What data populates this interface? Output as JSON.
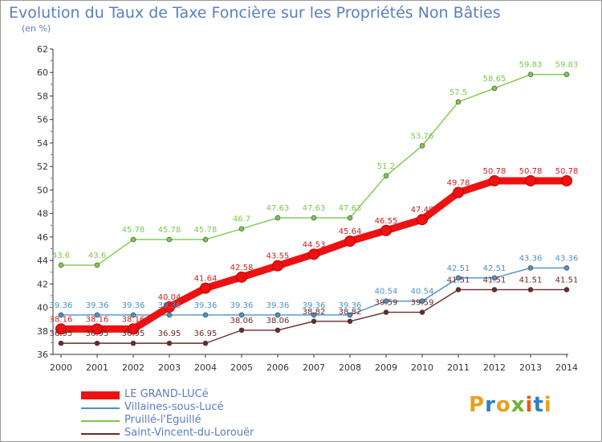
{
  "title": "Evolution du Taux de Taxe Foncière sur les Propriétés Non Bâties",
  "unit": "(en %)",
  "logo": {
    "text": "Proxiti",
    "colors": [
      "#e8a020",
      "#2f7fc8",
      "#6fb43a",
      "#e85a1a"
    ]
  },
  "chart_data": {
    "type": "line",
    "title": "Evolution du Taux de Taxe Foncière sur les Propriétés Non Bâties",
    "ylabel": "(en %)",
    "xlabel": "",
    "x": [
      "2000",
      "2001",
      "2002",
      "2003",
      "2004",
      "2005",
      "2006",
      "2007",
      "2008",
      "2009",
      "2010",
      "2011",
      "2012",
      "2013",
      "2014"
    ],
    "ylim": [
      36,
      62
    ],
    "yticks": [
      36,
      38,
      40,
      42,
      44,
      46,
      48,
      50,
      52,
      54,
      56,
      58,
      60,
      62
    ],
    "grid": false,
    "legend_position": "bottom-left",
    "series": [
      {
        "name": "LE GRAND-LUCé",
        "color": "#ee1111",
        "values": [
          38.16,
          38.16,
          38.16,
          40.04,
          41.64,
          42.58,
          43.55,
          44.53,
          45.64,
          46.55,
          47.48,
          49.78,
          50.78,
          50.78,
          50.78
        ],
        "labels": [
          "38.16",
          "38.16",
          "38.16",
          "40.04",
          "41.64",
          "42.58",
          "43.55",
          "44.53",
          "45.64",
          "46.55",
          "47.48",
          "49.78",
          "50.78",
          "50.78",
          "50.78"
        ]
      },
      {
        "name": "Villaines-sous-Lucé",
        "color": "#4a90c8",
        "values": [
          39.36,
          39.36,
          39.36,
          39.36,
          39.36,
          39.36,
          39.36,
          39.36,
          39.36,
          40.54,
          40.54,
          42.51,
          42.51,
          43.36,
          43.36
        ],
        "labels": [
          "39.36",
          "39.36",
          "39.36",
          "39.36",
          "39.36",
          "39.36",
          "39.36",
          "39.36",
          "39.36",
          "40.54",
          "40.54",
          "42.51",
          "42.51",
          "43.36",
          "43.36"
        ]
      },
      {
        "name": "Pruillé-l'Eguillé",
        "color": "#7cc84a",
        "values": [
          43.6,
          43.6,
          45.78,
          45.78,
          45.78,
          46.7,
          47.63,
          47.63,
          47.63,
          51.2,
          53.76,
          57.5,
          58.65,
          59.83,
          59.83
        ],
        "labels": [
          "43.6",
          "43.6",
          "45.78",
          "45.78",
          "45.78",
          "46.7",
          "47.63",
          "47.63",
          "47.63",
          "51.2",
          "53.76",
          "57.5",
          "58.65",
          "59.83",
          "59.83"
        ]
      },
      {
        "name": "Saint-Vincent-du-Lorouër",
        "color": "#6b2a2a",
        "values": [
          36.95,
          36.95,
          36.95,
          36.95,
          36.95,
          38.06,
          38.06,
          38.82,
          38.82,
          39.59,
          39.59,
          41.51,
          41.51,
          41.51,
          41.51
        ],
        "labels": [
          "36.95",
          "36.95",
          "36.95",
          "36.95",
          "36.95",
          "38.06",
          "38.06",
          "38.82",
          "38.82",
          "39.59",
          "39.59",
          "41.51",
          "41.51",
          "41.51",
          "41.51"
        ]
      }
    ]
  }
}
